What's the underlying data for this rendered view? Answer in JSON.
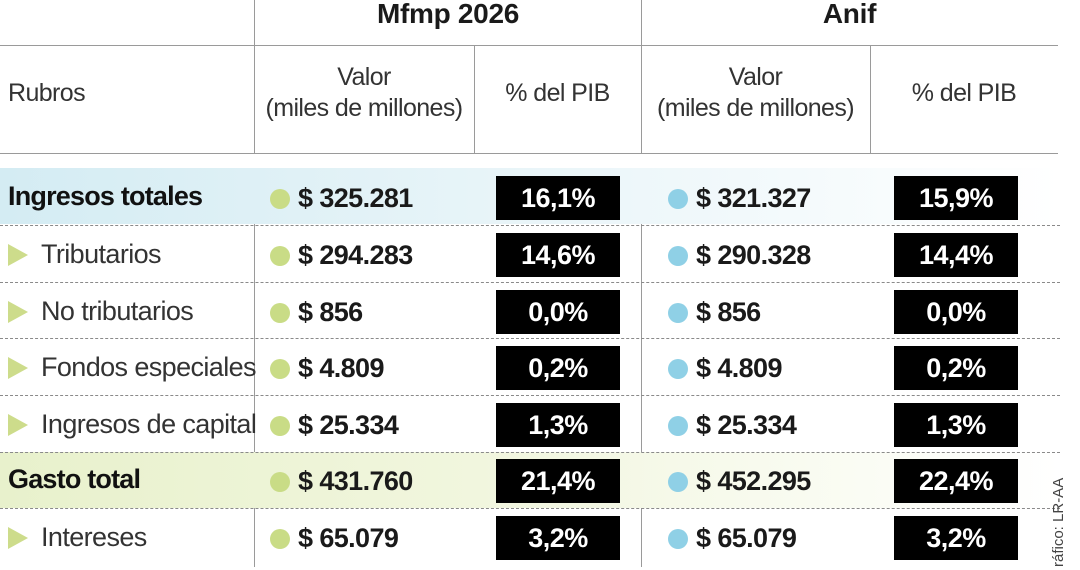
{
  "groups": {
    "mfmp": "Mfmp 2026",
    "anif": "Anif"
  },
  "columns": {
    "rubros": "Rubros",
    "valor_line1": "Valor",
    "valor_line2": "(miles de millones)",
    "pib": "% del PIB"
  },
  "colors": {
    "mfmp_dot": "#c9dc86",
    "anif_dot": "#8fd0e6",
    "row_highlight_income": "#d4ecf3",
    "row_highlight_expense": "#e8f1cc",
    "arrow": "#cddc8b"
  },
  "rows": [
    {
      "label": "Ingresos totales",
      "bold": true,
      "mfmp_valor": "$ 325.281",
      "mfmp_pib": "16,1%",
      "anif_valor": "$ 321.327",
      "anif_pib": "15,9%"
    },
    {
      "label": "Tributarios",
      "bold": false,
      "mfmp_valor": "$ 294.283",
      "mfmp_pib": "14,6%",
      "anif_valor": "$ 290.328",
      "anif_pib": "14,4%"
    },
    {
      "label": "No tributarios",
      "bold": false,
      "mfmp_valor": "$ 856",
      "mfmp_pib": "0,0%",
      "anif_valor": "$ 856",
      "anif_pib": "0,0%"
    },
    {
      "label": "Fondos especiales",
      "bold": false,
      "mfmp_valor": "$ 4.809",
      "mfmp_pib": "0,2%",
      "anif_valor": "$ 4.809",
      "anif_pib": "0,2%"
    },
    {
      "label": "Ingresos de capital",
      "bold": false,
      "mfmp_valor": "$ 25.334",
      "mfmp_pib": "1,3%",
      "anif_valor": "$ 25.334",
      "anif_pib": "1,3%"
    },
    {
      "label": "Gasto total",
      "bold": true,
      "mfmp_valor": "$ 431.760",
      "mfmp_pib": "21,4%",
      "anif_valor": "$ 452.295",
      "anif_pib": "22,4%"
    },
    {
      "label": "Intereses",
      "bold": false,
      "mfmp_valor": "$ 65.079",
      "mfmp_pib": "3,2%",
      "anif_valor": "$ 65.079",
      "anif_pib": "3,2%"
    }
  ],
  "credit": "ráfico: LR-AA"
}
